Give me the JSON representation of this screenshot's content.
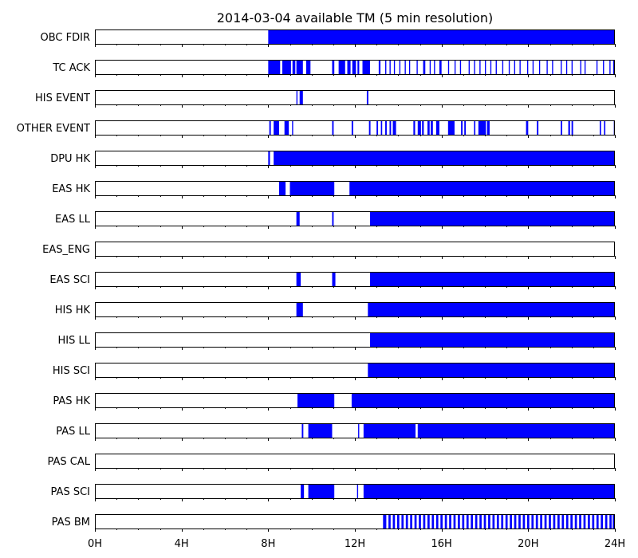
{
  "chart_data": {
    "type": "timeline",
    "title": "2014-03-04 available TM (5 min resolution)",
    "x_unit": "hours",
    "xlim": [
      0,
      24
    ],
    "x_ticks": [
      0,
      4,
      8,
      12,
      16,
      20,
      24
    ],
    "x_tick_labels": [
      "0H",
      "4H",
      "8H",
      "12H",
      "16H",
      "20H",
      "24H"
    ],
    "bar_color": "#0000ff",
    "rows": [
      {
        "label": "OBC FDIR",
        "intervals": [
          [
            8.0,
            24.0
          ]
        ]
      },
      {
        "label": "TC ACK",
        "intervals": [
          [
            8.0,
            8.55
          ],
          [
            8.65,
            9.05
          ],
          [
            9.12,
            9.25
          ],
          [
            9.3,
            9.6
          ],
          [
            9.75,
            9.95
          ],
          [
            10.95,
            11.05
          ],
          [
            11.25,
            11.55
          ],
          [
            11.65,
            11.8
          ],
          [
            11.88,
            12.05
          ],
          [
            12.12,
            12.2
          ],
          [
            12.35,
            12.7
          ],
          [
            13.1,
            13.18
          ],
          [
            13.4,
            13.45
          ],
          [
            13.6,
            13.65
          ],
          [
            13.8,
            13.85
          ],
          [
            14.05,
            14.1
          ],
          [
            14.3,
            14.35
          ],
          [
            14.5,
            14.55
          ],
          [
            14.85,
            14.9
          ],
          [
            15.15,
            15.25
          ],
          [
            15.45,
            15.5
          ],
          [
            15.65,
            15.7
          ],
          [
            15.9,
            16.0
          ],
          [
            16.3,
            16.35
          ],
          [
            16.6,
            16.65
          ],
          [
            16.85,
            16.9
          ],
          [
            17.25,
            17.3
          ],
          [
            17.5,
            17.55
          ],
          [
            17.75,
            17.8
          ],
          [
            18.0,
            18.05
          ],
          [
            18.25,
            18.3
          ],
          [
            18.5,
            18.55
          ],
          [
            18.8,
            18.85
          ],
          [
            19.1,
            19.15
          ],
          [
            19.35,
            19.4
          ],
          [
            19.6,
            19.65
          ],
          [
            19.95,
            20.0
          ],
          [
            20.2,
            20.25
          ],
          [
            20.5,
            20.55
          ],
          [
            20.85,
            20.9
          ],
          [
            21.1,
            21.15
          ],
          [
            21.5,
            21.55
          ],
          [
            21.75,
            21.8
          ],
          [
            22.0,
            22.05
          ],
          [
            22.4,
            22.45
          ],
          [
            22.6,
            22.65
          ],
          [
            23.15,
            23.2
          ],
          [
            23.45,
            23.5
          ],
          [
            23.75,
            23.8
          ],
          [
            23.92,
            24.0
          ]
        ]
      },
      {
        "label": "HIS EVENT",
        "intervals": [
          [
            9.3,
            9.35
          ],
          [
            9.45,
            9.6
          ],
          [
            12.55,
            12.62
          ]
        ]
      },
      {
        "label": "OTHER EVENT",
        "intervals": [
          [
            8.05,
            8.12
          ],
          [
            8.25,
            8.5
          ],
          [
            8.75,
            8.95
          ],
          [
            9.1,
            9.15
          ],
          [
            10.95,
            11.02
          ],
          [
            11.85,
            11.92
          ],
          [
            12.65,
            12.72
          ],
          [
            13.0,
            13.07
          ],
          [
            13.2,
            13.26
          ],
          [
            13.4,
            13.47
          ],
          [
            13.6,
            13.67
          ],
          [
            13.75,
            13.9
          ],
          [
            14.7,
            14.78
          ],
          [
            14.9,
            15.05
          ],
          [
            15.1,
            15.18
          ],
          [
            15.35,
            15.45
          ],
          [
            15.5,
            15.6
          ],
          [
            15.75,
            15.9
          ],
          [
            16.3,
            16.6
          ],
          [
            16.9,
            16.97
          ],
          [
            17.05,
            17.12
          ],
          [
            17.5,
            17.56
          ],
          [
            17.7,
            18.05
          ],
          [
            18.1,
            18.22
          ],
          [
            19.9,
            20.0
          ],
          [
            20.4,
            20.47
          ],
          [
            21.5,
            21.57
          ],
          [
            21.85,
            21.93
          ],
          [
            22.0,
            22.07
          ],
          [
            23.3,
            23.36
          ],
          [
            23.5,
            23.56
          ],
          [
            23.95,
            24.0
          ]
        ]
      },
      {
        "label": "DPU HK",
        "intervals": [
          [
            8.0,
            8.08
          ],
          [
            8.25,
            24.0
          ]
        ]
      },
      {
        "label": "EAS HK",
        "intervals": [
          [
            8.5,
            8.8
          ],
          [
            9.0,
            11.05
          ],
          [
            11.75,
            24.0
          ]
        ]
      },
      {
        "label": "EAS LL",
        "intervals": [
          [
            9.3,
            9.45
          ],
          [
            10.95,
            11.02
          ],
          [
            12.7,
            24.0
          ]
        ]
      },
      {
        "label": "EAS_ENG",
        "intervals": []
      },
      {
        "label": "EAS SCI",
        "intervals": [
          [
            9.3,
            9.5
          ],
          [
            10.95,
            11.1
          ],
          [
            12.7,
            24.0
          ]
        ]
      },
      {
        "label": "HIS HK",
        "intervals": [
          [
            9.3,
            9.6
          ],
          [
            12.6,
            24.0
          ]
        ]
      },
      {
        "label": "HIS LL",
        "intervals": [
          [
            12.7,
            24.0
          ]
        ]
      },
      {
        "label": "HIS SCI",
        "intervals": [
          [
            12.6,
            24.0
          ]
        ]
      },
      {
        "label": "PAS HK",
        "intervals": [
          [
            9.35,
            11.05
          ],
          [
            11.85,
            24.0
          ]
        ]
      },
      {
        "label": "PAS LL",
        "intervals": [
          [
            9.55,
            9.62
          ],
          [
            9.85,
            10.95
          ],
          [
            12.15,
            12.2
          ],
          [
            12.4,
            14.8
          ],
          [
            14.9,
            24.0
          ]
        ]
      },
      {
        "label": "PAS CAL",
        "intervals": []
      },
      {
        "label": "PAS SCI",
        "intervals": [
          [
            9.5,
            9.65
          ],
          [
            9.85,
            11.05
          ],
          [
            12.1,
            12.15
          ],
          [
            12.4,
            24.0
          ]
        ]
      },
      {
        "label": "PAS BM",
        "intervals": [
          [
            13.3,
            13.45
          ],
          [
            13.55,
            13.65
          ],
          [
            13.75,
            13.85
          ],
          [
            13.95,
            14.05
          ],
          [
            14.15,
            14.25
          ],
          [
            14.35,
            14.45
          ],
          [
            14.55,
            14.65
          ],
          [
            14.75,
            14.85
          ],
          [
            14.95,
            15.05
          ],
          [
            15.15,
            15.25
          ],
          [
            15.35,
            15.45
          ],
          [
            15.55,
            15.65
          ],
          [
            15.75,
            15.85
          ],
          [
            15.95,
            16.05
          ],
          [
            16.15,
            16.25
          ],
          [
            16.35,
            16.45
          ],
          [
            16.55,
            16.65
          ],
          [
            16.75,
            16.85
          ],
          [
            16.95,
            17.05
          ],
          [
            17.15,
            17.25
          ],
          [
            17.35,
            17.45
          ],
          [
            17.55,
            17.65
          ],
          [
            17.75,
            17.85
          ],
          [
            17.95,
            18.05
          ],
          [
            18.15,
            18.25
          ],
          [
            18.35,
            18.45
          ],
          [
            18.55,
            18.65
          ],
          [
            18.75,
            18.85
          ],
          [
            18.95,
            19.05
          ],
          [
            19.15,
            19.25
          ],
          [
            19.35,
            19.45
          ],
          [
            19.55,
            19.65
          ],
          [
            19.75,
            19.85
          ],
          [
            19.95,
            20.05
          ],
          [
            20.15,
            20.25
          ],
          [
            20.35,
            20.45
          ],
          [
            20.55,
            20.65
          ],
          [
            20.75,
            20.85
          ],
          [
            20.95,
            21.05
          ],
          [
            21.15,
            21.25
          ],
          [
            21.35,
            21.45
          ],
          [
            21.55,
            21.65
          ],
          [
            21.75,
            21.85
          ],
          [
            21.95,
            22.05
          ],
          [
            22.15,
            22.25
          ],
          [
            22.35,
            22.45
          ],
          [
            22.55,
            22.65
          ],
          [
            22.75,
            22.85
          ],
          [
            22.95,
            23.05
          ],
          [
            23.15,
            23.25
          ],
          [
            23.35,
            23.45
          ],
          [
            23.55,
            23.65
          ],
          [
            23.75,
            23.85
          ],
          [
            23.9,
            24.0
          ]
        ]
      }
    ]
  }
}
